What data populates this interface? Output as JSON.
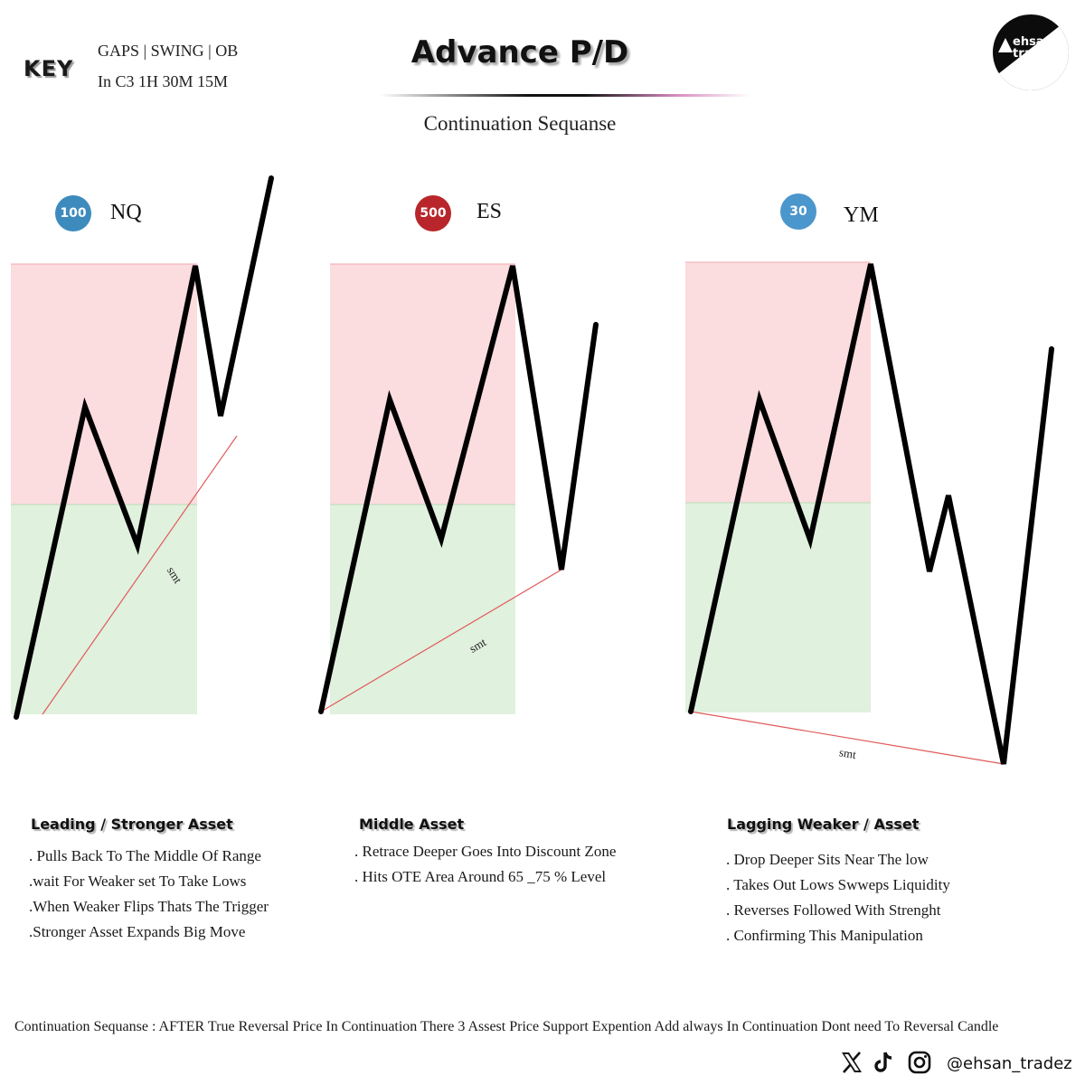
{
  "header": {
    "key_label": "KEY",
    "key_line1": "GAPS | SWING | OB",
    "key_line2": "In C3 1H 30M 15M",
    "title": "Advance P/D",
    "subtitle": "Continuation Sequanse",
    "logo_text_1": "ehsan",
    "logo_text_2": "tradez"
  },
  "assets": [
    {
      "badge": "100",
      "badge_color": "#3d8bbd",
      "symbol": "NQ",
      "heading": "Leading / Stronger Asset",
      "bullets": [
        ". Pulls Back To The Middle Of Range",
        ".wait For Weaker set To Take Lows",
        ".When Weaker Flips Thats The Trigger",
        ".Stronger Asset Expands Big Move"
      ]
    },
    {
      "badge": "500",
      "badge_color": "#b8262b",
      "symbol": "ES",
      "heading": "Middle Asset",
      "bullets": [
        ". Retrace Deeper Goes Into Discount Zone",
        ". Hits OTE Area Around 65 _75 % Level"
      ]
    },
    {
      "badge": "30",
      "badge_color": "#4b96cc",
      "symbol": "YM",
      "heading": "Lagging Weaker / Asset",
      "bullets": [
        ". Drop Deeper Sits Near The low",
        ". Takes Out Lows Swweps Liquidity",
        ". Reverses Followed With Strenght",
        ". Confirming This Manipulation"
      ]
    }
  ],
  "smt_label": "smt",
  "colors": {
    "premium": "#fbdcdf",
    "discount": "#e0f1de",
    "price_line": "#000000",
    "smt_line": "#e05a5a"
  },
  "footer": {
    "note": "Continuation Sequanse : AFTER True Reversal Price In Continuation There 3 Assest Price Support Expention Add always In Continuation Dont need To Reversal Candle",
    "handle": "@ehsan_tradez",
    "social_icons": [
      "x-icon",
      "tiktok-icon",
      "instagram-icon"
    ]
  }
}
